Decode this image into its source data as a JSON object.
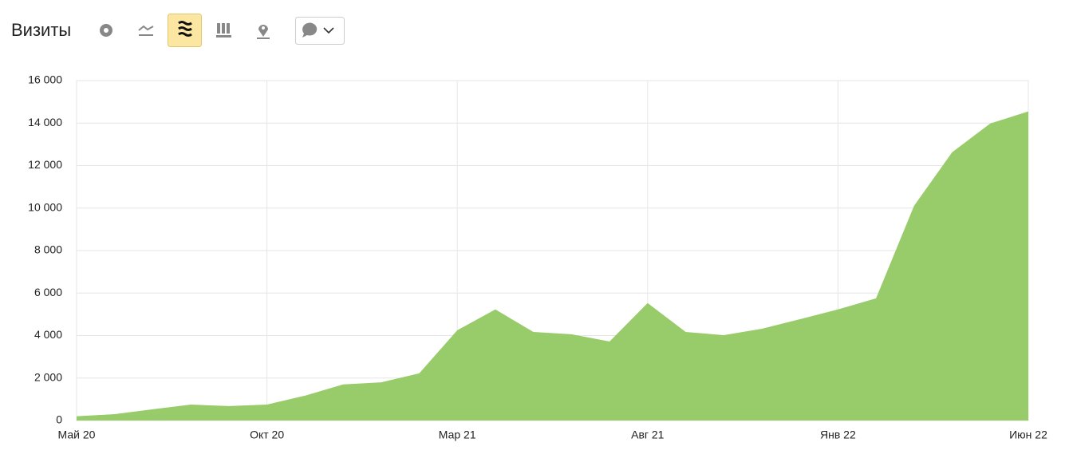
{
  "chart_data": {
    "type": "area",
    "title": "Визиты",
    "categories": [
      "Май 20",
      null,
      null,
      null,
      null,
      "Окт 20",
      null,
      null,
      null,
      null,
      "Мар 21",
      null,
      null,
      null,
      null,
      "Авг 21",
      null,
      null,
      null,
      null,
      "Янв 22",
      null,
      null,
      null,
      null,
      "Июн 22"
    ],
    "series": [
      {
        "name": "Визиты",
        "color": "#98cb6a",
        "values": [
          200,
          300,
          530,
          750,
          680,
          750,
          1170,
          1700,
          1800,
          2220,
          4250,
          5230,
          4170,
          4060,
          3720,
          5530,
          4170,
          4020,
          4320,
          4770,
          5230,
          5750,
          10110,
          12630,
          13980,
          14550
        ]
      }
    ],
    "ylim": [
      0,
      16000
    ],
    "yticks": [
      0,
      {
        "value": 2000,
        "label": "2 000"
      },
      {
        "value": 4000,
        "label": "4 000"
      },
      {
        "value": 6000,
        "label": "6 000"
      },
      {
        "value": 8000,
        "label": "8 000"
      },
      {
        "value": 10000,
        "label": "10 000"
      },
      {
        "value": 12000,
        "label": "12 000"
      },
      {
        "value": 14000,
        "label": "14 000"
      },
      {
        "value": 16000,
        "label": "16 000"
      }
    ],
    "grid": true
  }
}
